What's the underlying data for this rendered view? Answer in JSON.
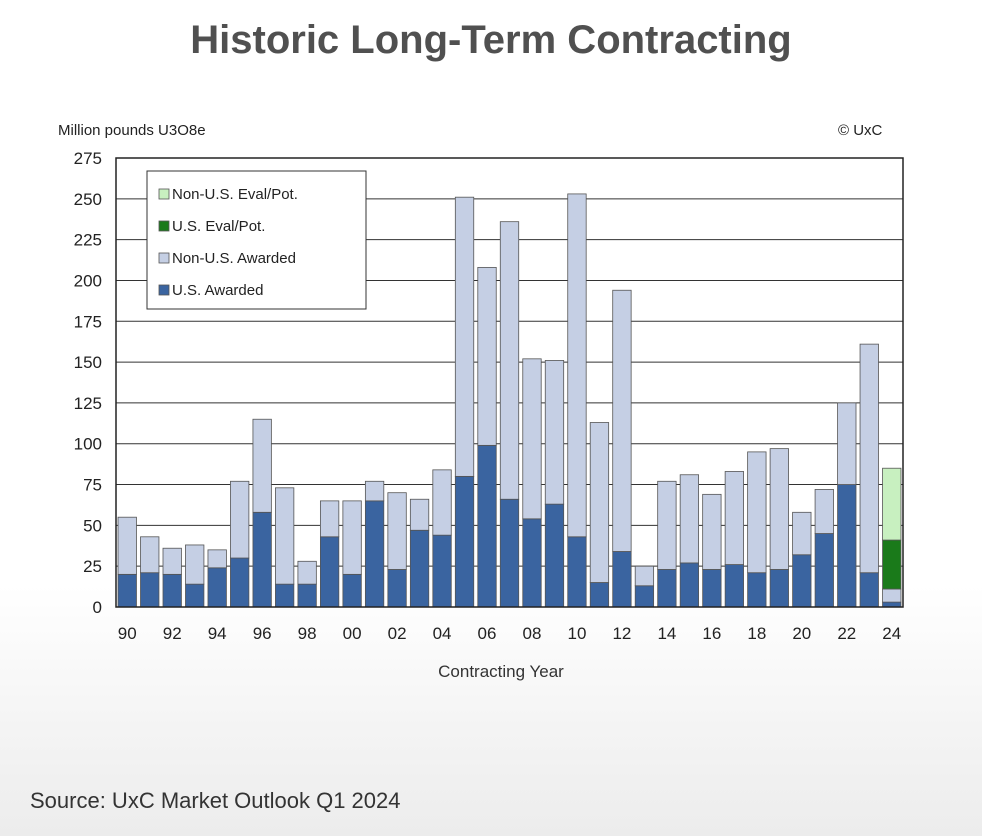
{
  "title": "Historic Long-Term Contracting",
  "unit_label": "Million pounds U3O8e",
  "copyright": "© UxC",
  "source": "Source: UxC Market Outlook Q1 2024",
  "chart_data": {
    "type": "bar",
    "stacked": true,
    "title": "Historic Long-Term Contracting",
    "xlabel": "Contracting Year",
    "ylabel": "Million pounds U3O8e",
    "ylim": [
      0,
      275
    ],
    "yticks": [
      0,
      25,
      50,
      75,
      100,
      125,
      150,
      175,
      200,
      225,
      250,
      275
    ],
    "grid": true,
    "legend_position": "top-left",
    "categories": [
      "90",
      "91",
      "92",
      "93",
      "94",
      "95",
      "96",
      "97",
      "98",
      "99",
      "00",
      "01",
      "02",
      "03",
      "04",
      "05",
      "06",
      "07",
      "08",
      "09",
      "10",
      "11",
      "12",
      "13",
      "14",
      "15",
      "16",
      "17",
      "18",
      "19",
      "20",
      "21",
      "22",
      "23",
      "24"
    ],
    "xtick_labels": [
      "90",
      "92",
      "94",
      "96",
      "98",
      "00",
      "02",
      "04",
      "06",
      "08",
      "10",
      "12",
      "14",
      "16",
      "18",
      "20",
      "22",
      "24"
    ],
    "series": [
      {
        "name": "U.S. Awarded",
        "color": "#3a64a0",
        "values": [
          20,
          21,
          20,
          14,
          24,
          30,
          58,
          14,
          14,
          43,
          20,
          65,
          23,
          47,
          44,
          80,
          99,
          66,
          54,
          63,
          43,
          15,
          34,
          13,
          23,
          27,
          23,
          26,
          21,
          23,
          32,
          45,
          75,
          21,
          3
        ]
      },
      {
        "name": "Non-U.S. Awarded",
        "color": "#c5cfe4",
        "values": [
          35,
          22,
          16,
          24,
          11,
          47,
          57,
          59,
          14,
          22,
          45,
          12,
          47,
          19,
          40,
          171,
          109,
          170,
          98,
          88,
          210,
          98,
          160,
          12,
          54,
          54,
          46,
          57,
          74,
          74,
          26,
          27,
          50,
          140,
          8
        ]
      },
      {
        "name": "U.S. Eval/Pot.",
        "color": "#1a7a1a",
        "values": [
          0,
          0,
          0,
          0,
          0,
          0,
          0,
          0,
          0,
          0,
          0,
          0,
          0,
          0,
          0,
          0,
          0,
          0,
          0,
          0,
          0,
          0,
          0,
          0,
          0,
          0,
          0,
          0,
          0,
          0,
          0,
          0,
          0,
          0,
          30
        ]
      },
      {
        "name": "Non-U.S. Eval/Pot.",
        "color": "#c8f0c0",
        "values": [
          0,
          0,
          0,
          0,
          0,
          0,
          0,
          0,
          0,
          0,
          0,
          0,
          0,
          0,
          0,
          0,
          0,
          0,
          0,
          0,
          0,
          0,
          0,
          0,
          0,
          0,
          0,
          0,
          0,
          0,
          0,
          0,
          0,
          0,
          44
        ]
      }
    ],
    "legend_order": [
      "Non-U.S. Eval/Pot.",
      "U.S. Eval/Pot.",
      "Non-U.S. Awarded",
      "U.S. Awarded"
    ]
  }
}
